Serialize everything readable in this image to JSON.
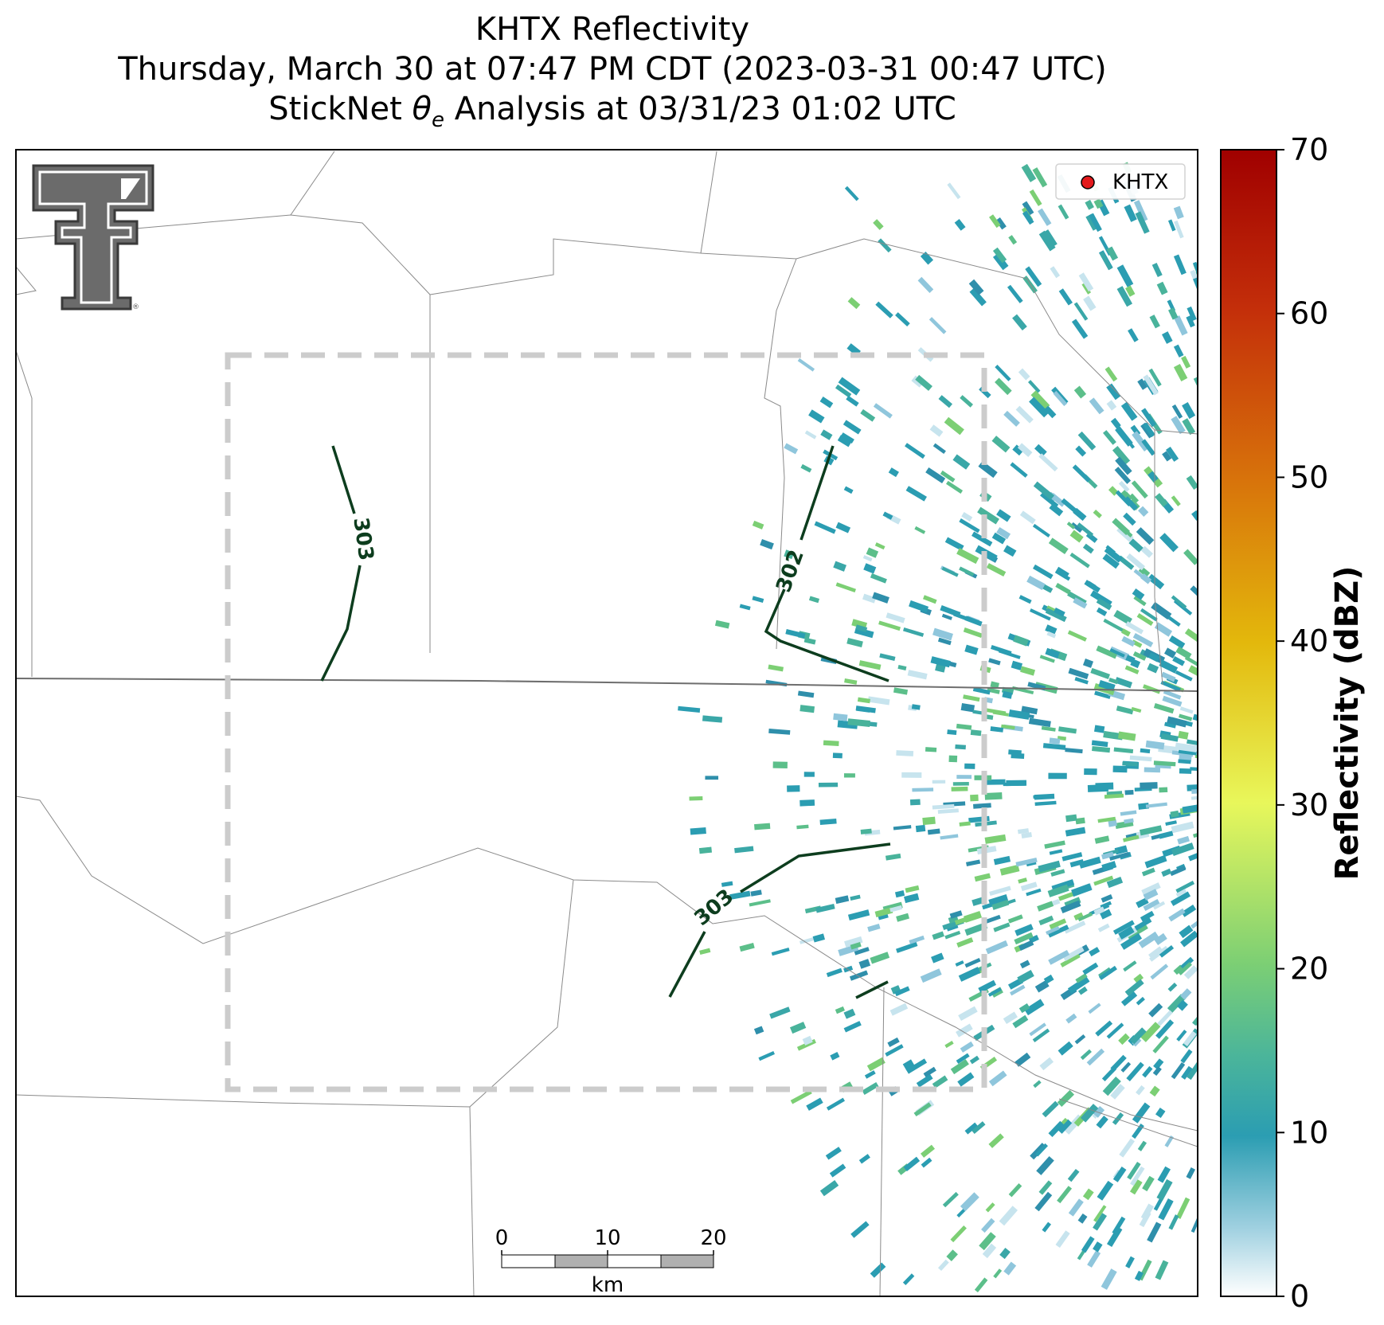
{
  "title": {
    "line1": "KHTX Reflectivity",
    "line2": "Thursday, March 30 at 07:47 PM CDT (2023-03-31 00:47 UTC)",
    "line3_pre": "StickNet ",
    "line3_symbol": "θ",
    "line3_sub": "e",
    "line3_post": " Analysis at 03/31/23 01:02 UTC"
  },
  "legend": {
    "label": "KHTX",
    "marker_color": "#e31a1c"
  },
  "colorbar": {
    "label": "Reflectivity (dBZ)",
    "ticks": [
      "0",
      "10",
      "20",
      "30",
      "40",
      "50",
      "60",
      "70"
    ],
    "range": [
      0,
      70
    ],
    "colors": [
      "#ffffff",
      "#2b9db2",
      "#7ccf74",
      "#e8f75b",
      "#e3b80c",
      "#d8740b",
      "#c42f0a",
      "#a00000"
    ]
  },
  "contours": [
    {
      "label": "303"
    },
    {
      "label": "302"
    },
    {
      "label": "303"
    }
  ],
  "scalebar": {
    "ticks": [
      "0",
      "10",
      "20"
    ],
    "unit": "km"
  },
  "logo": {
    "icon": "texas-tech-double-t-logo"
  },
  "analysis_box": {
    "style": "dashed",
    "color": "#cccccc"
  }
}
